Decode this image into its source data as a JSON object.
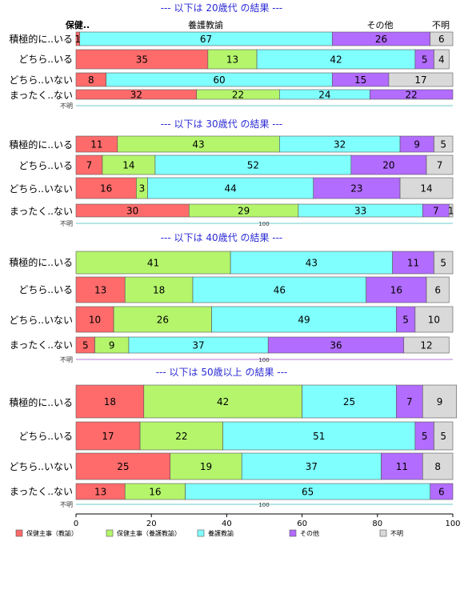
{
  "chart_data": {
    "type": "bar",
    "stacked": true,
    "horizontal": true,
    "categories": [
      "積極的に..いる",
      "どちら..いる",
      "どちら..いない",
      "まったく..ない"
    ],
    "series_names": [
      "保健主事（教諭）",
      "保健主事（養護教諭）",
      "養護教諭",
      "その他",
      "不明"
    ],
    "colors": [
      "#ff6b6b",
      "#b4f56c",
      "#80ffff",
      "#b26cff",
      "#d9d9d9"
    ],
    "xlim": [
      0,
      100
    ],
    "xticks": [
      "0",
      "20",
      "40",
      "60",
      "80",
      "100"
    ],
    "legend_position": "bottom",
    "na_label": "不明",
    "small_label": "100",
    "panels": [
      {
        "title": "--- 以下は 20歳代 の結果 ---",
        "top_labels": [
          "保健..",
          "養護教諭",
          "その他",
          "不明"
        ],
        "rows": [
          [
            1,
            0,
            67,
            26,
            6
          ],
          [
            35,
            13,
            42,
            5,
            4
          ],
          [
            8,
            0,
            60,
            15,
            17
          ],
          [
            32,
            22,
            24,
            22,
            0
          ]
        ],
        "labels": [
          [
            "1",
            "",
            "67",
            "26",
            "6"
          ],
          [
            "35",
            "13",
            "42",
            "5",
            "4"
          ],
          [
            "8",
            "",
            "60",
            "15",
            "17"
          ],
          [
            "32",
            "22",
            "24",
            "22",
            ""
          ]
        ]
      },
      {
        "title": "--- 以下は 30歳代 の結果 ---",
        "rows": [
          [
            11,
            43,
            32,
            9,
            5
          ],
          [
            7,
            14,
            52,
            20,
            7
          ],
          [
            16,
            3,
            44,
            23,
            14
          ],
          [
            30,
            29,
            33,
            7,
            1
          ]
        ],
        "labels": [
          [
            "11",
            "43",
            "32",
            "9",
            "5"
          ],
          [
            "7",
            "14",
            "52",
            "20",
            "7"
          ],
          [
            "16",
            "3",
            "44",
            "23",
            "14"
          ],
          [
            "30",
            "29",
            "33",
            "7",
            "1"
          ]
        ]
      },
      {
        "title": "--- 以下は 40歳代 の結果 ---",
        "rows": [
          [
            0,
            41,
            43,
            11,
            5
          ],
          [
            13,
            18,
            46,
            16,
            6
          ],
          [
            10,
            26,
            49,
            5,
            10
          ],
          [
            5,
            9,
            37,
            36,
            12
          ]
        ],
        "labels": [
          [
            "",
            "41",
            "43",
            "11",
            "5"
          ],
          [
            "13",
            "18",
            "46",
            "16",
            "6"
          ],
          [
            "10",
            "26",
            "49",
            "5",
            "10"
          ],
          [
            "5",
            "9",
            "37",
            "36",
            "12"
          ]
        ]
      },
      {
        "title": "--- 以下は 50歳以上 の結果 ---",
        "rows": [
          [
            18,
            42,
            25,
            7,
            9
          ],
          [
            17,
            22,
            51,
            5,
            5
          ],
          [
            25,
            19,
            37,
            11,
            8
          ],
          [
            13,
            16,
            65,
            6,
            0
          ]
        ],
        "labels": [
          [
            "18",
            "42",
            "25",
            "7",
            "9"
          ],
          [
            "17",
            "22",
            "51",
            "5",
            "5"
          ],
          [
            "25",
            "19",
            "37",
            "11",
            "8"
          ],
          [
            "13",
            "16",
            "65",
            "6",
            ""
          ]
        ]
      }
    ]
  }
}
